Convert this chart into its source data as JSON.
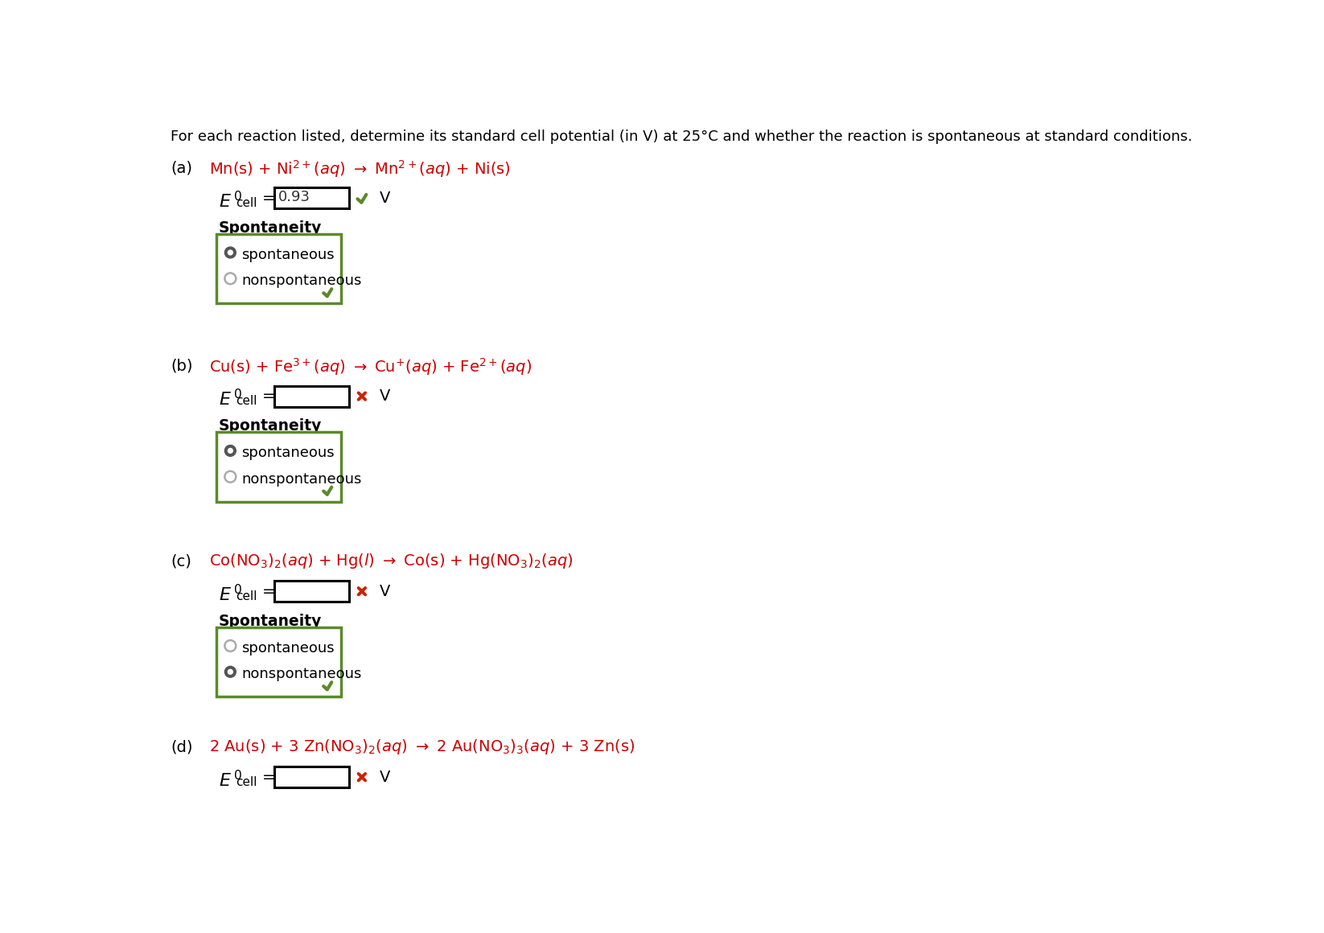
{
  "bg_color": "#ffffff",
  "header_text": "For each reaction listed, determine its standard cell potential (in V) at 25°C and whether the reaction is spontaneous at standard conditions.",
  "reaction_color": "#cc0000",
  "green_border": "#5a8a2a",
  "green_check_color": "#5a8a2a",
  "red_x_color": "#cc2200",
  "sections": [
    {
      "label": "(a)",
      "ecell_value": "0.93",
      "ecell_correct": true,
      "radio_selected": 0,
      "spont_correct": true,
      "has_spont": true
    },
    {
      "label": "(b)",
      "ecell_value": "",
      "ecell_correct": false,
      "radio_selected": 0,
      "spont_correct": true,
      "has_spont": true
    },
    {
      "label": "(c)",
      "ecell_value": "",
      "ecell_correct": false,
      "radio_selected": 1,
      "spont_correct": true,
      "has_spont": true
    },
    {
      "label": "(d)",
      "ecell_value": "",
      "ecell_correct": false,
      "radio_selected": -1,
      "spont_correct": false,
      "has_spont": false
    }
  ]
}
